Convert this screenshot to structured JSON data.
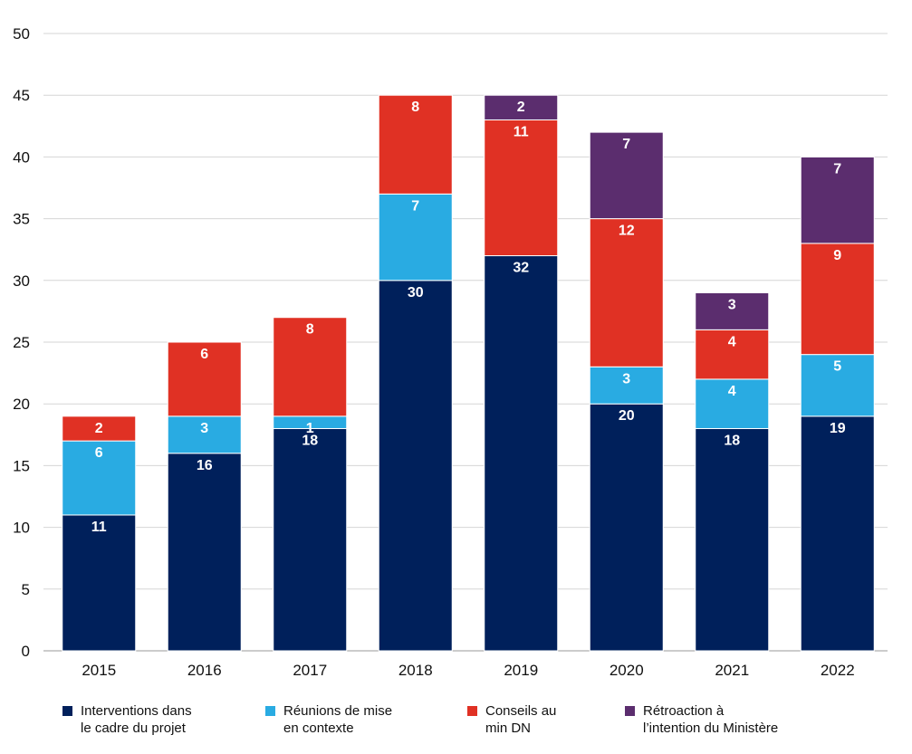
{
  "chart_data": {
    "type": "bar",
    "stacked": true,
    "title": "",
    "xlabel": "",
    "ylabel": "",
    "ylim": [
      0,
      50
    ],
    "yticks": [
      0,
      5,
      10,
      15,
      20,
      25,
      30,
      35,
      40,
      45,
      50
    ],
    "grid": true,
    "legend_position": "bottom",
    "categories": [
      "2015",
      "2016",
      "2017",
      "2018",
      "2019",
      "2020",
      "2021",
      "2022"
    ],
    "series": [
      {
        "name": [
          "Interventions dans",
          "le cadre du projet"
        ],
        "color": "#00205b",
        "values": [
          11,
          16,
          18,
          30,
          32,
          20,
          18,
          19
        ]
      },
      {
        "name": [
          "Réunions de mise",
          "en contexte"
        ],
        "color": "#29abe2",
        "values": [
          6,
          3,
          1,
          7,
          null,
          3,
          4,
          5
        ]
      },
      {
        "name": [
          "Conseils au",
          "min DN"
        ],
        "color": "#e03124",
        "values": [
          2,
          6,
          8,
          8,
          11,
          12,
          4,
          9
        ]
      },
      {
        "name": [
          "Rétroaction à",
          "l’intention du Ministère"
        ],
        "color": "#5b2d6e",
        "values": [
          null,
          null,
          null,
          null,
          2,
          7,
          3,
          7
        ]
      }
    ]
  }
}
